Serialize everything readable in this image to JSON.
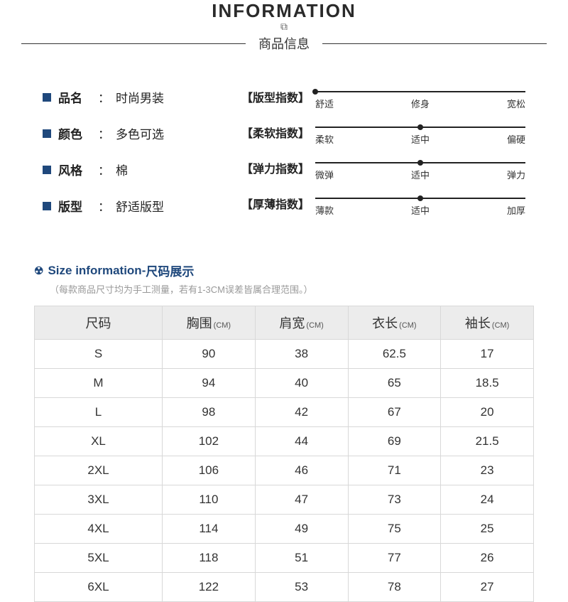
{
  "header": {
    "title_en": "INFORMATION",
    "title_cn": "商品信息",
    "icon": "⧉"
  },
  "attrs": [
    {
      "label": "品名",
      "value": "时尚男装"
    },
    {
      "label": "颜色",
      "value": "多色可选"
    },
    {
      "label": "风格",
      "value": "棉"
    },
    {
      "label": "版型",
      "value": "舒适版型"
    }
  ],
  "sliders": [
    {
      "name": "【版型指数】",
      "ticks": [
        "舒适",
        "修身",
        "宽松"
      ],
      "dot": 0
    },
    {
      "name": "【柔软指数】",
      "ticks": [
        "柔软",
        "适中",
        "偏硬"
      ],
      "dot": 50
    },
    {
      "name": "【弹力指数】",
      "ticks": [
        "微弹",
        "适中",
        "弹力"
      ],
      "dot": 50
    },
    {
      "name": "【厚薄指数】",
      "ticks": [
        "薄款",
        "适中",
        "加厚"
      ],
      "dot": 50
    }
  ],
  "size_section": {
    "title_en": "Size information",
    "dash": " - ",
    "title_cn": "尺码展示",
    "note": "（每款商品尺寸均为手工测量，若有1-3CM误差皆属合理范围。）"
  },
  "table": {
    "columns": [
      {
        "label": "尺码",
        "unit": ""
      },
      {
        "label": "胸围",
        "unit": "(CM)"
      },
      {
        "label": "肩宽",
        "unit": "(CM)"
      },
      {
        "label": "衣长",
        "unit": "(CM)"
      },
      {
        "label": "袖长",
        "unit": "(CM)"
      }
    ],
    "rows": [
      [
        "S",
        "90",
        "38",
        "62.5",
        "17"
      ],
      [
        "M",
        "94",
        "40",
        "65",
        "18.5"
      ],
      [
        "L",
        "98",
        "42",
        "67",
        "20"
      ],
      [
        "XL",
        "102",
        "44",
        "69",
        "21.5"
      ],
      [
        "2XL",
        "106",
        "46",
        "71",
        "23"
      ],
      [
        "3XL",
        "110",
        "47",
        "73",
        "24"
      ],
      [
        "4XL",
        "114",
        "49",
        "75",
        "25"
      ],
      [
        "5XL",
        "118",
        "51",
        "77",
        "26"
      ],
      [
        "6XL",
        "122",
        "53",
        "78",
        "27"
      ]
    ]
  },
  "colors": {
    "brand": "#1f487c",
    "border": "#d8d8d8",
    "header_bg": "#ececec"
  }
}
